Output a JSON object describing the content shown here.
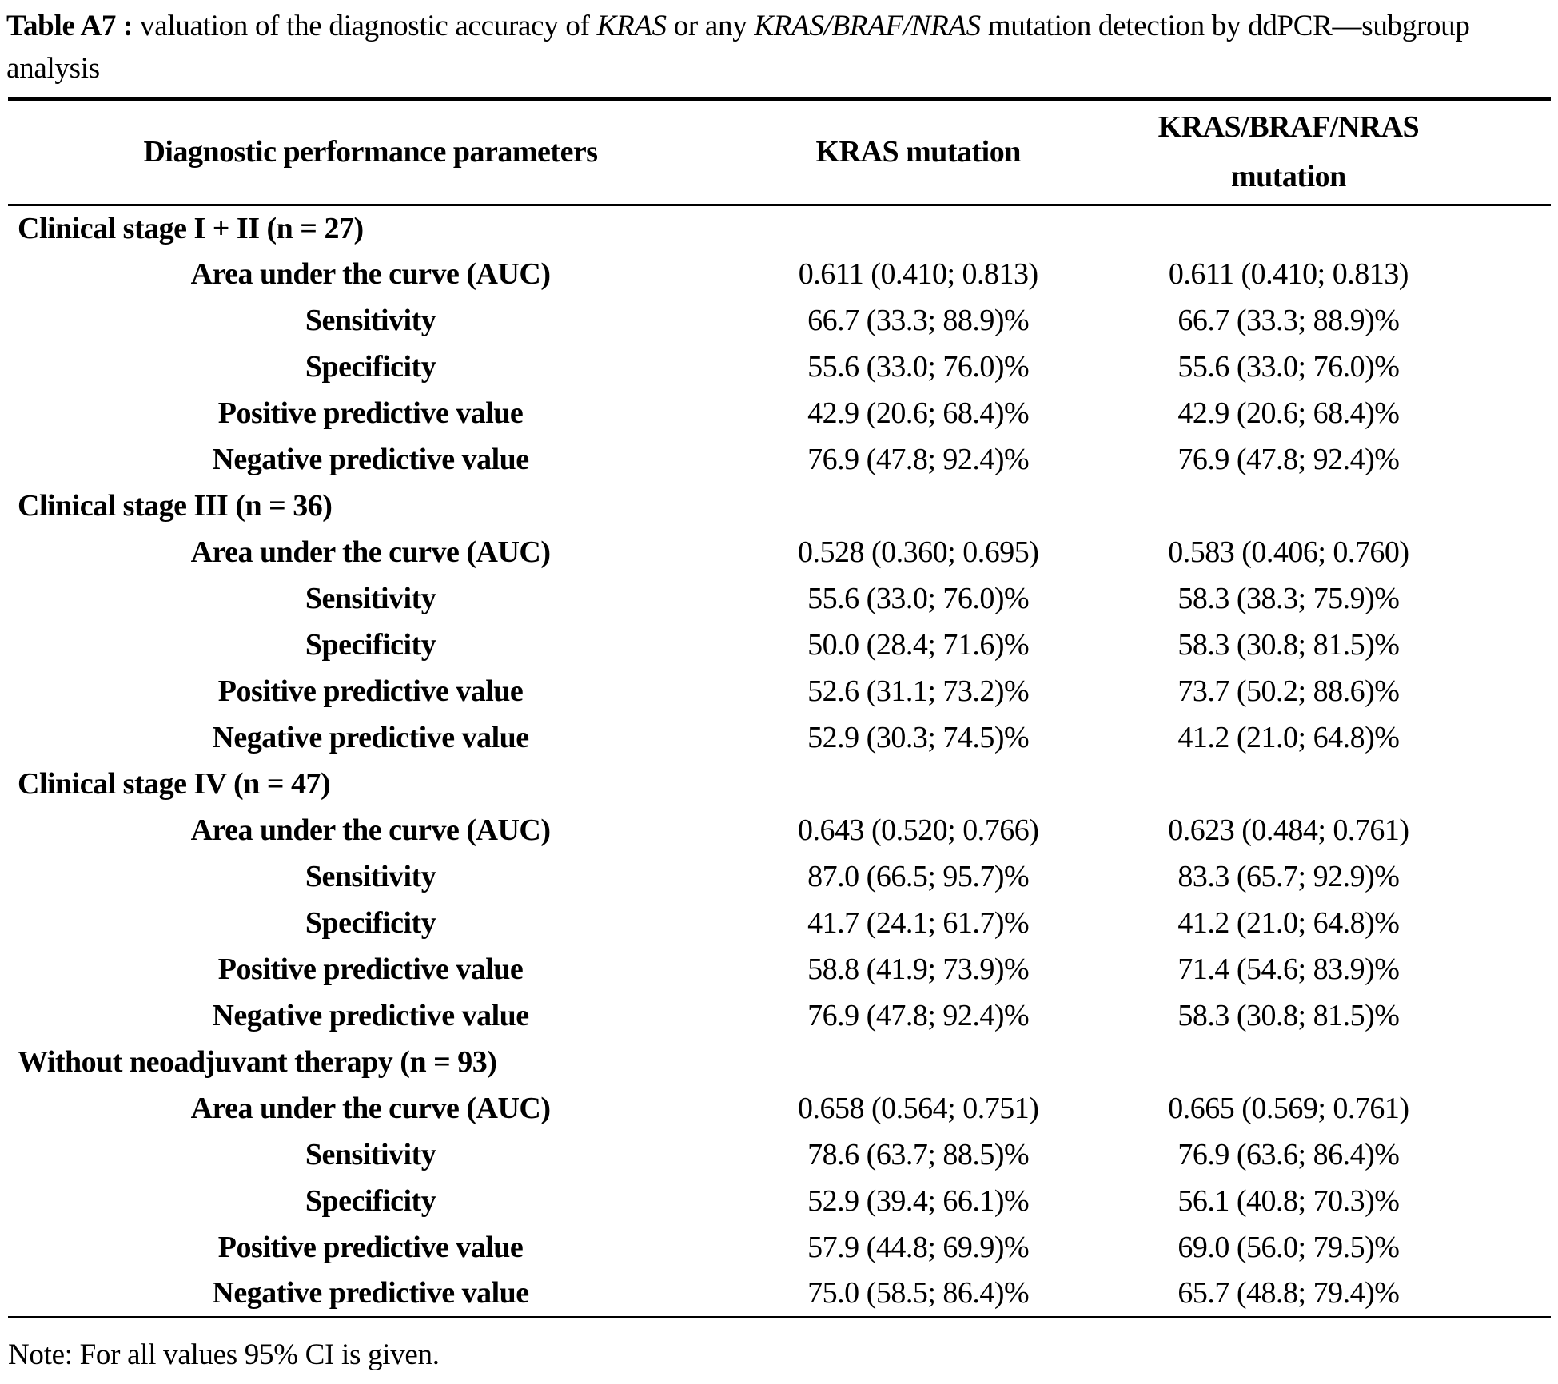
{
  "caption": {
    "label": "Table A7 :",
    "text1": " valuation of the diagnostic accuracy of ",
    "italic1": "KRAS",
    "text2": " or any ",
    "italic2": "KRAS/BRAF/NRAS",
    "text3": " mutation detection by ddPCR—subgroup analysis"
  },
  "table": {
    "columns": [
      "Diagnostic performance parameters",
      "KRAS mutation",
      "KRAS/BRAF/NRAS mutation"
    ],
    "sections": [
      {
        "title": "Clinical stage I + II (n = 27)",
        "rows": [
          {
            "param": "Area under the curve (AUC)",
            "kras": "0.611 (0.410; 0.813)",
            "kbn": "0.611 (0.410; 0.813)"
          },
          {
            "param": "Sensitivity",
            "kras": "66.7 (33.3; 88.9)%",
            "kbn": "66.7 (33.3; 88.9)%"
          },
          {
            "param": "Specificity",
            "kras": "55.6 (33.0; 76.0)%",
            "kbn": "55.6 (33.0; 76.0)%"
          },
          {
            "param": "Positive predictive value",
            "kras": "42.9 (20.6; 68.4)%",
            "kbn": "42.9 (20.6; 68.4)%"
          },
          {
            "param": "Negative predictive value",
            "kras": "76.9 (47.8; 92.4)%",
            "kbn": "76.9 (47.8; 92.4)%"
          }
        ]
      },
      {
        "title": "Clinical stage III (n = 36)",
        "rows": [
          {
            "param": "Area under the curve (AUC)",
            "kras": "0.528 (0.360; 0.695)",
            "kbn": "0.583 (0.406; 0.760)"
          },
          {
            "param": "Sensitivity",
            "kras": "55.6 (33.0; 76.0)%",
            "kbn": "58.3 (38.3; 75.9)%"
          },
          {
            "param": "Specificity",
            "kras": "50.0 (28.4; 71.6)%",
            "kbn": "58.3 (30.8; 81.5)%"
          },
          {
            "param": "Positive predictive value",
            "kras": "52.6 (31.1; 73.2)%",
            "kbn": "73.7 (50.2; 88.6)%"
          },
          {
            "param": "Negative predictive value",
            "kras": "52.9 (30.3; 74.5)%",
            "kbn": "41.2 (21.0; 64.8)%"
          }
        ]
      },
      {
        "title": "Clinical stage IV (n = 47)",
        "rows": [
          {
            "param": "Area under the curve (AUC)",
            "kras": "0.643 (0.520; 0.766)",
            "kbn": "0.623 (0.484; 0.761)"
          },
          {
            "param": "Sensitivity",
            "kras": "87.0 (66.5; 95.7)%",
            "kbn": "83.3 (65.7; 92.9)%"
          },
          {
            "param": "Specificity",
            "kras": "41.7 (24.1; 61.7)%",
            "kbn": "41.2 (21.0; 64.8)%"
          },
          {
            "param": "Positive predictive value",
            "kras": "58.8 (41.9; 73.9)%",
            "kbn": "71.4 (54.6; 83.9)%"
          },
          {
            "param": "Negative predictive value",
            "kras": "76.9 (47.8; 92.4)%",
            "kbn": "58.3 (30.8; 81.5)%"
          }
        ]
      },
      {
        "title": "Without neoadjuvant therapy (n = 93)",
        "rows": [
          {
            "param": "Area under the curve (AUC)",
            "kras": "0.658 (0.564; 0.751)",
            "kbn": "0.665 (0.569; 0.761)"
          },
          {
            "param": "Sensitivity",
            "kras": "78.6 (63.7; 88.5)%",
            "kbn": "76.9 (63.6; 86.4)%"
          },
          {
            "param": "Specificity",
            "kras": "52.9 (39.4; 66.1)%",
            "kbn": "56.1 (40.8; 70.3)%"
          },
          {
            "param": "Positive predictive value",
            "kras": "57.9 (44.8; 69.9)%",
            "kbn": "69.0 (56.0; 79.5)%"
          },
          {
            "param": "Negative predictive value",
            "kras": "75.0 (58.5; 86.4)%",
            "kbn": "65.7 (48.8; 79.4)%"
          }
        ]
      }
    ]
  },
  "note": "Note: For all values 95% CI is given.",
  "colors": {
    "text": "#000000",
    "background": "#ffffff",
    "rule": "#000000"
  }
}
